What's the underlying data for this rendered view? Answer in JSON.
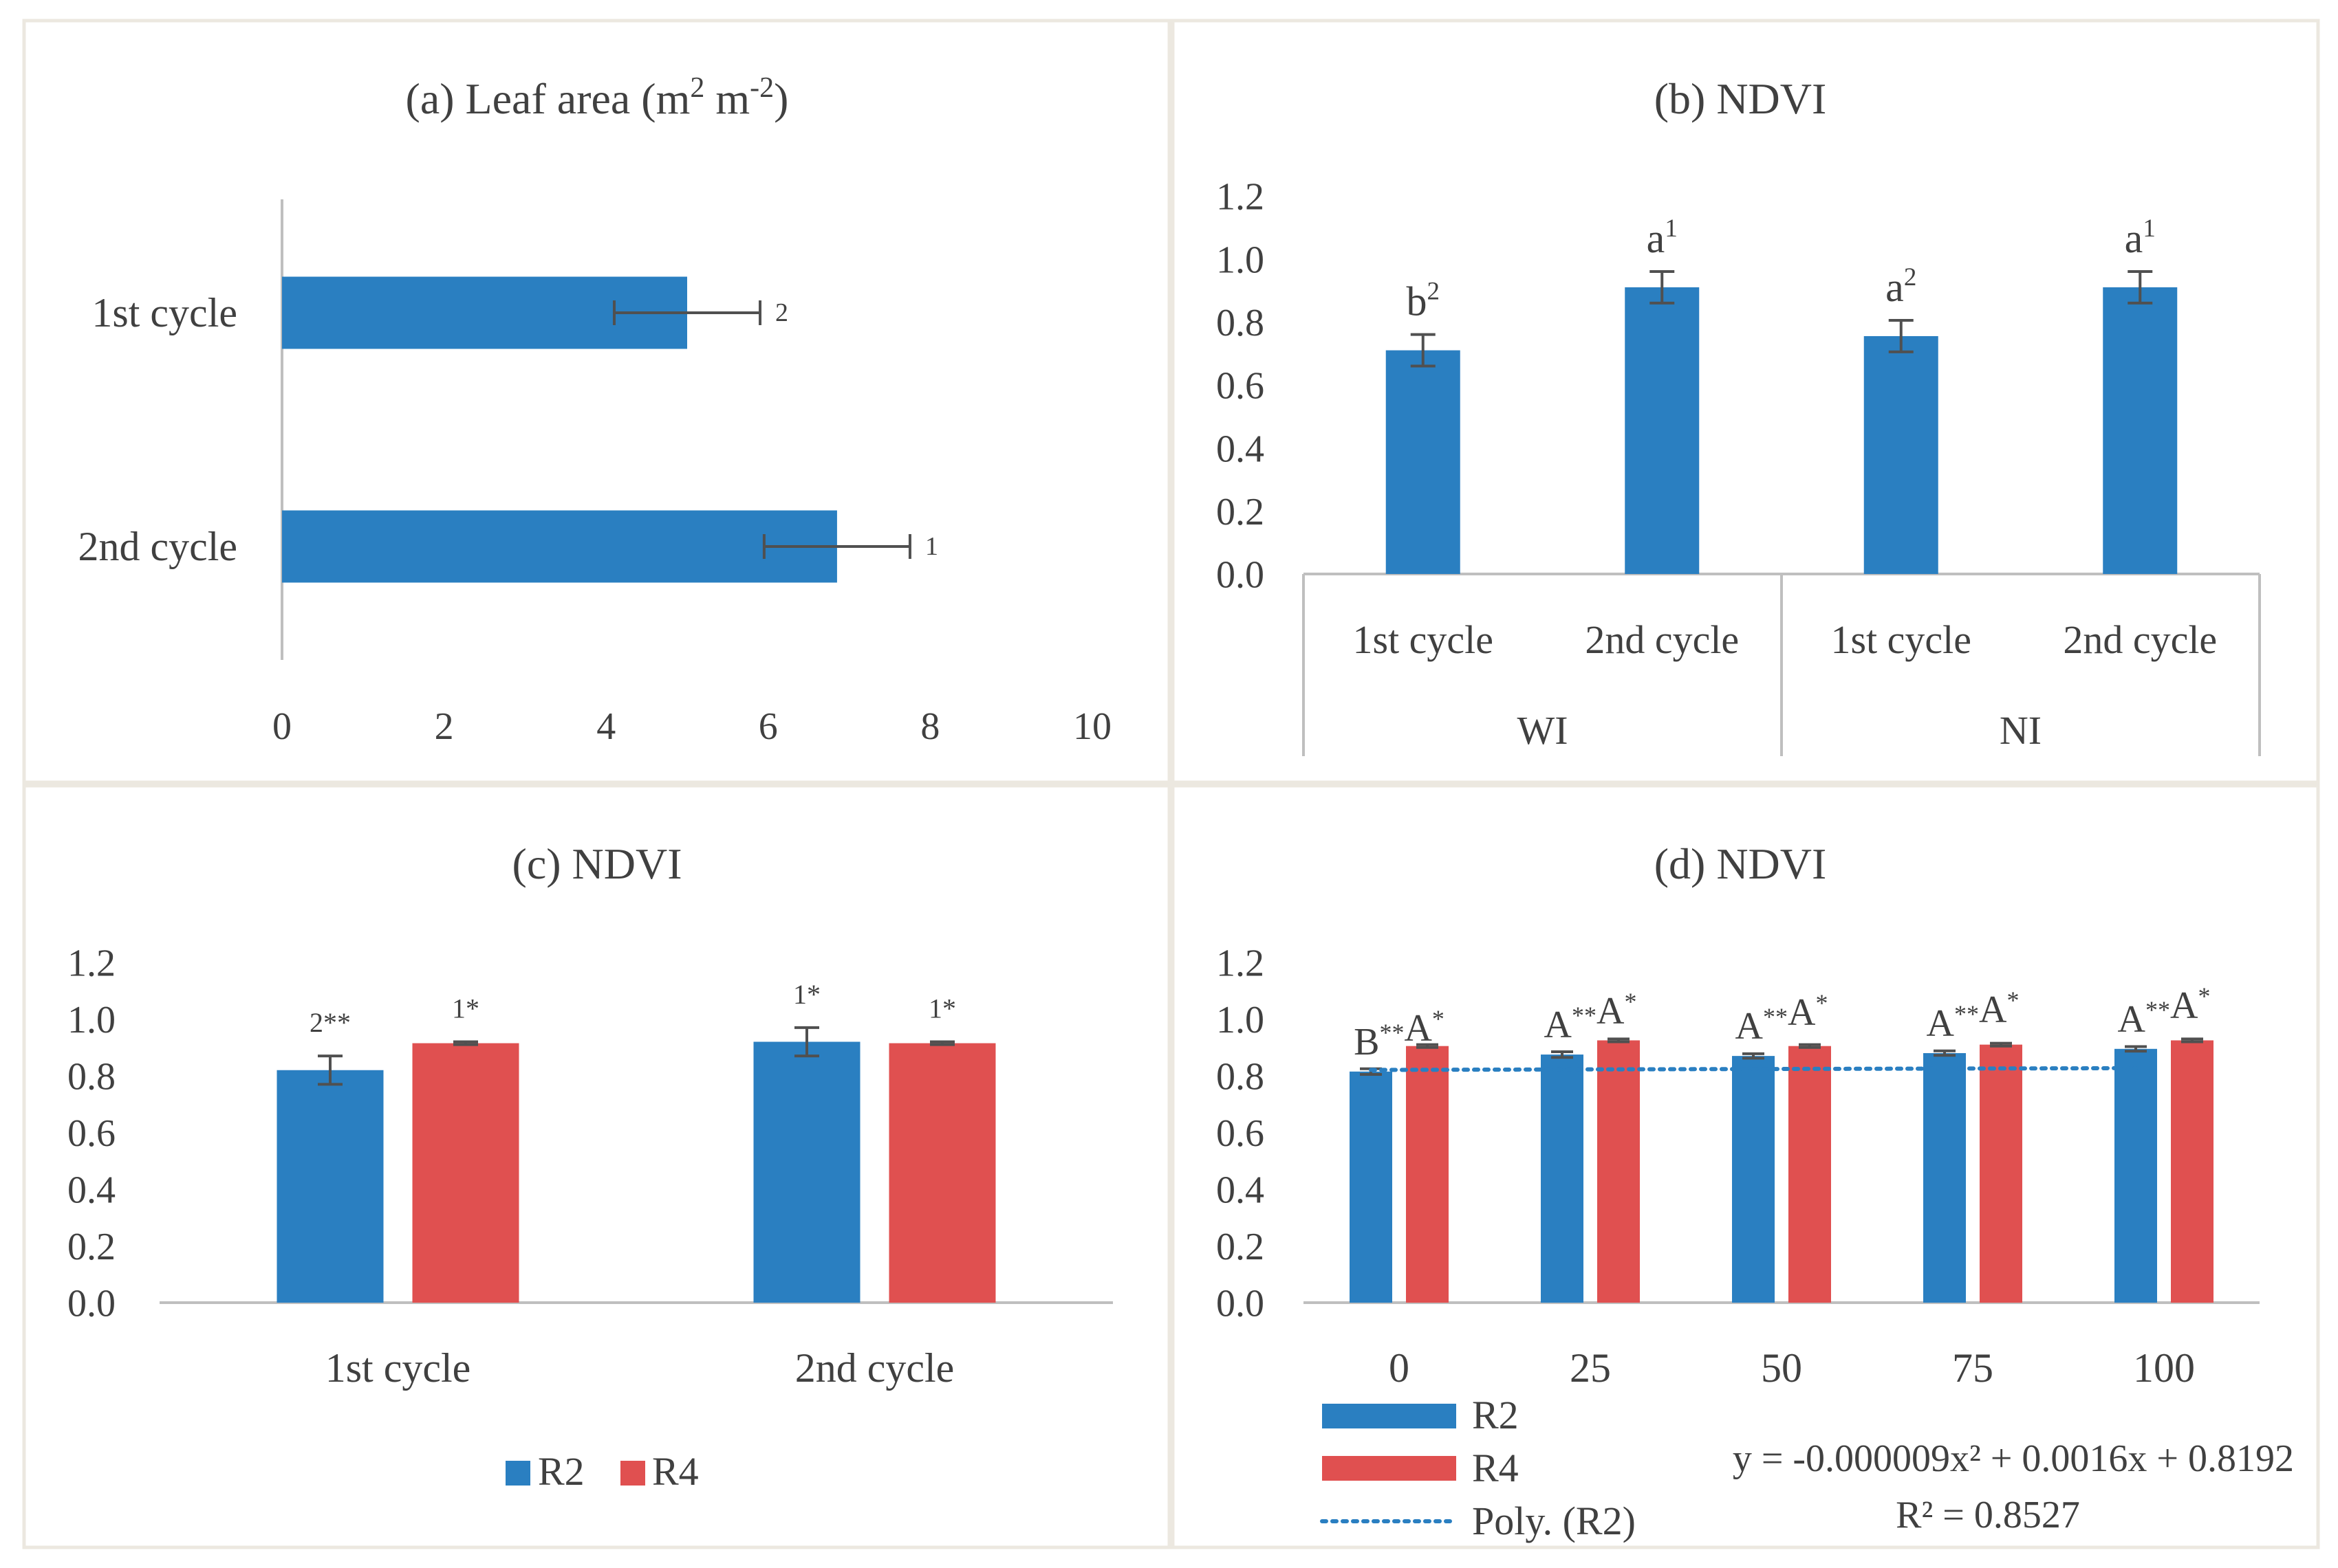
{
  "colors": {
    "blue": "#2a7fc1",
    "red": "#e05050",
    "axis": "#bfbfbf",
    "text": "#404040",
    "panel_border": "#ece8e0",
    "error_bar": "#505050"
  },
  "chart_data": [
    {
      "id": "a",
      "type": "bar",
      "orientation": "horizontal",
      "title_main": "(a) Leaf area (m",
      "title_sup1": "2",
      "title_mid": " m",
      "title_sup2": "-2",
      "title_end": ")",
      "categories": [
        "1st cycle",
        "2nd cycle"
      ],
      "values": [
        5.0,
        6.85
      ],
      "errors": [
        0.9,
        0.9
      ],
      "labels": [
        "2",
        "1"
      ],
      "xlim": [
        0,
        10
      ],
      "xticks": [
        "0",
        "2",
        "4",
        "6",
        "8",
        "10"
      ]
    },
    {
      "id": "b",
      "type": "bar",
      "title": "(b) NDVI",
      "categories": [
        "1st cycle",
        "2nd cycle",
        "1st cycle",
        "2nd cycle"
      ],
      "groups": [
        "WI",
        "NI"
      ],
      "values": [
        0.71,
        0.91,
        0.755,
        0.91
      ],
      "errors": [
        0.05,
        0.05,
        0.05,
        0.05
      ],
      "letters": [
        "b",
        "a",
        "a",
        "a"
      ],
      "sups": [
        "2",
        "1",
        "2",
        "1"
      ],
      "ylim": [
        0,
        1.2
      ],
      "yticks": [
        "0.0",
        "0.2",
        "0.4",
        "0.6",
        "0.8",
        "1.0",
        "1.2"
      ]
    },
    {
      "id": "c",
      "type": "bar",
      "title": "(c) NDVI",
      "categories": [
        "1st cycle",
        "2nd cycle"
      ],
      "series": [
        {
          "name": "R2",
          "values": [
            0.82,
            0.92
          ],
          "errors": [
            0.05,
            0.05
          ],
          "labels": [
            "2**",
            "1*"
          ]
        },
        {
          "name": "R4",
          "values": [
            0.915,
            0.915
          ],
          "errors": [
            0.005,
            0.005
          ],
          "labels": [
            "1*",
            "1*"
          ]
        }
      ],
      "ylim": [
        0,
        1.2
      ],
      "yticks": [
        "0.0",
        "0.2",
        "0.4",
        "0.6",
        "0.8",
        "1.0",
        "1.2"
      ],
      "legend": [
        "R2",
        "R4"
      ]
    },
    {
      "id": "d",
      "type": "bar",
      "title": "(d) NDVI",
      "categories": [
        "0",
        "25",
        "50",
        "75",
        "100"
      ],
      "series": [
        {
          "name": "R2",
          "values": [
            0.815,
            0.875,
            0.87,
            0.88,
            0.895
          ],
          "errors": [
            0.01,
            0.01,
            0.008,
            0.008,
            0.008
          ],
          "labels": [
            "B**",
            "A**",
            "A**",
            "A**",
            "A**"
          ]
        },
        {
          "name": "R4",
          "values": [
            0.905,
            0.925,
            0.905,
            0.91,
            0.925
          ],
          "errors": [
            0.005,
            0.005,
            0.005,
            0.005,
            0.005
          ],
          "labels": [
            "A*",
            "A*",
            "A*",
            "A*",
            "A*"
          ]
        }
      ],
      "ylim": [
        0,
        1.2
      ],
      "yticks": [
        "0.0",
        "0.2",
        "0.4",
        "0.6",
        "0.8",
        "1.0",
        "1.2"
      ],
      "trendline": {
        "name": "Poly. (R2)",
        "a": -9e-06,
        "b": 0.0016,
        "c": 0.8192
      },
      "legend": [
        "R2",
        "R4",
        "Poly. (R2)"
      ],
      "equation": "y = -0.000009x² + 0.0016x + 0.8192",
      "r2": "R² = 0.8527"
    }
  ]
}
